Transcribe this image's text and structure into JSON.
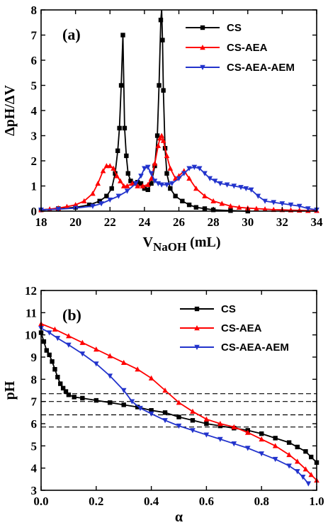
{
  "chart_data": [
    {
      "type": "line",
      "panel_label": "(a)",
      "xlabel": {
        "main": "V",
        "sub": "NaOH",
        "unit": " (mL)"
      },
      "ylabel": "ΔpH/ΔV",
      "xlim": [
        18,
        34
      ],
      "ylim": [
        0,
        8
      ],
      "xticks": [
        18,
        20,
        22,
        24,
        26,
        28,
        30,
        32,
        34
      ],
      "yticks": [
        0,
        1,
        2,
        3,
        4,
        5,
        6,
        7,
        8
      ],
      "legend_position": "top-right",
      "series": [
        {
          "name": "CS",
          "color": "#000000",
          "marker": "square",
          "x": [
            18.0,
            19.0,
            20.0,
            20.8,
            21.4,
            21.8,
            22.1,
            22.3,
            22.45,
            22.55,
            22.65,
            22.75,
            22.85,
            22.95,
            23.05,
            23.2,
            23.4,
            23.6,
            23.8,
            24.0,
            24.2,
            24.4,
            24.6,
            24.75,
            24.85,
            24.95,
            25.0,
            25.05,
            25.1,
            25.2,
            25.3,
            25.5,
            25.8,
            26.2,
            26.6,
            27.0,
            27.5,
            28.0,
            29.0,
            30.0
          ],
          "y": [
            0.05,
            0.1,
            0.15,
            0.25,
            0.4,
            0.6,
            0.9,
            1.5,
            2.4,
            3.3,
            5.0,
            7.0,
            3.3,
            2.2,
            1.5,
            1.2,
            1.1,
            1.15,
            1.1,
            0.9,
            0.85,
            1.1,
            1.8,
            3.0,
            5.0,
            7.6,
            8.1,
            6.8,
            4.8,
            2.5,
            1.5,
            0.9,
            0.6,
            0.4,
            0.25,
            0.15,
            0.1,
            0.05,
            0.02,
            0.0
          ]
        },
        {
          "name": "CS-AEA",
          "color": "#ff0000",
          "marker": "triangle-up",
          "x": [
            18.0,
            18.5,
            19.0,
            19.5,
            20.0,
            20.5,
            21.0,
            21.3,
            21.6,
            21.8,
            22.0,
            22.2,
            22.4,
            22.6,
            22.8,
            23.0,
            23.3,
            23.6,
            23.9,
            24.2,
            24.4,
            24.6,
            24.8,
            24.9,
            25.0,
            25.1,
            25.3,
            25.5,
            25.8,
            26.0,
            26.3,
            26.6,
            27.0,
            27.5,
            28.0,
            28.5,
            29.0,
            29.5,
            30.0,
            30.5,
            31.0,
            31.5,
            32.0,
            32.5,
            33.0,
            33.5,
            34.0
          ],
          "y": [
            0.05,
            0.08,
            0.12,
            0.18,
            0.25,
            0.4,
            0.7,
            1.1,
            1.6,
            1.8,
            1.8,
            1.7,
            1.4,
            1.2,
            1.0,
            1.0,
            1.1,
            1.0,
            1.0,
            1.05,
            1.3,
            1.9,
            2.6,
            2.9,
            3.0,
            2.8,
            2.2,
            1.7,
            1.3,
            1.4,
            1.6,
            1.3,
            0.9,
            0.6,
            0.4,
            0.3,
            0.2,
            0.15,
            0.12,
            0.1,
            0.08,
            0.06,
            0.05,
            0.04,
            0.03,
            0.02,
            0.02
          ]
        },
        {
          "name": "CS-AEA-AEM",
          "color": "#2233cc",
          "marker": "triangle-down",
          "x": [
            18.0,
            19.0,
            20.0,
            21.0,
            21.5,
            22.0,
            22.5,
            23.0,
            23.5,
            23.8,
            24.0,
            24.2,
            24.4,
            24.6,
            24.8,
            25.0,
            25.3,
            25.6,
            26.0,
            26.3,
            26.6,
            26.9,
            27.2,
            27.5,
            27.8,
            28.1,
            28.4,
            28.8,
            29.2,
            29.6,
            29.9,
            30.2,
            30.6,
            31.0,
            31.5,
            32.0,
            32.5,
            33.0,
            33.5,
            34.0
          ],
          "y": [
            0.05,
            0.08,
            0.12,
            0.2,
            0.3,
            0.45,
            0.6,
            0.8,
            1.1,
            1.4,
            1.7,
            1.75,
            1.5,
            1.2,
            1.1,
            1.05,
            1.05,
            1.1,
            1.3,
            1.5,
            1.7,
            1.75,
            1.7,
            1.5,
            1.3,
            1.2,
            1.1,
            1.05,
            1.0,
            0.95,
            0.9,
            0.85,
            0.6,
            0.4,
            0.35,
            0.3,
            0.25,
            0.2,
            0.1,
            0.05
          ]
        }
      ]
    },
    {
      "type": "line",
      "panel_label": "(b)",
      "xlabel": "α",
      "ylabel": "pH",
      "xlim": [
        0.0,
        1.0
      ],
      "ylim": [
        3,
        12
      ],
      "xticks": [
        "0.0",
        "0.2",
        "0.4",
        "0.6",
        "0.8",
        "1.0"
      ],
      "yticks": [
        3,
        4,
        5,
        6,
        7,
        8,
        9,
        10,
        11,
        12
      ],
      "reference_lines_y": [
        7.35,
        7.0,
        6.4,
        5.85
      ],
      "legend_position": "top-right",
      "series": [
        {
          "name": "CS",
          "color": "#000000",
          "marker": "square",
          "x": [
            0.0,
            0.01,
            0.02,
            0.03,
            0.04,
            0.05,
            0.06,
            0.07,
            0.08,
            0.09,
            0.1,
            0.12,
            0.15,
            0.2,
            0.25,
            0.3,
            0.35,
            0.4,
            0.45,
            0.5,
            0.55,
            0.6,
            0.65,
            0.7,
            0.75,
            0.8,
            0.85,
            0.9,
            0.93,
            0.96,
            0.98,
            1.0
          ],
          "y": [
            10.1,
            9.7,
            9.3,
            9.1,
            8.8,
            8.45,
            8.1,
            7.8,
            7.6,
            7.45,
            7.3,
            7.2,
            7.15,
            7.05,
            6.95,
            6.85,
            6.75,
            6.6,
            6.5,
            6.3,
            6.15,
            6.0,
            5.9,
            5.8,
            5.7,
            5.55,
            5.35,
            5.15,
            4.95,
            4.75,
            4.5,
            4.25
          ]
        },
        {
          "name": "CS-AEA",
          "color": "#ff0000",
          "marker": "triangle-up",
          "x": [
            0.0,
            0.05,
            0.1,
            0.15,
            0.2,
            0.25,
            0.3,
            0.35,
            0.4,
            0.45,
            0.5,
            0.55,
            0.6,
            0.65,
            0.7,
            0.75,
            0.8,
            0.85,
            0.9,
            0.93,
            0.96,
            0.98,
            1.0
          ],
          "y": [
            10.5,
            10.25,
            9.95,
            9.65,
            9.35,
            9.05,
            8.75,
            8.45,
            8.05,
            7.5,
            6.95,
            6.55,
            6.2,
            6.0,
            5.85,
            5.6,
            5.3,
            5.0,
            4.6,
            4.3,
            3.95,
            3.7,
            3.45
          ]
        },
        {
          "name": "CS-AEA-AEM",
          "color": "#2233cc",
          "marker": "triangle-down",
          "x": [
            0.0,
            0.03,
            0.06,
            0.1,
            0.15,
            0.2,
            0.25,
            0.3,
            0.33,
            0.36,
            0.4,
            0.45,
            0.5,
            0.55,
            0.6,
            0.65,
            0.7,
            0.75,
            0.8,
            0.85,
            0.9,
            0.93,
            0.95,
            0.97
          ],
          "y": [
            10.3,
            10.1,
            9.85,
            9.55,
            9.15,
            8.7,
            8.15,
            7.5,
            7.0,
            6.7,
            6.45,
            6.15,
            5.9,
            5.7,
            5.5,
            5.3,
            5.1,
            4.9,
            4.65,
            4.4,
            4.1,
            3.85,
            3.6,
            3.3
          ]
        }
      ]
    }
  ]
}
